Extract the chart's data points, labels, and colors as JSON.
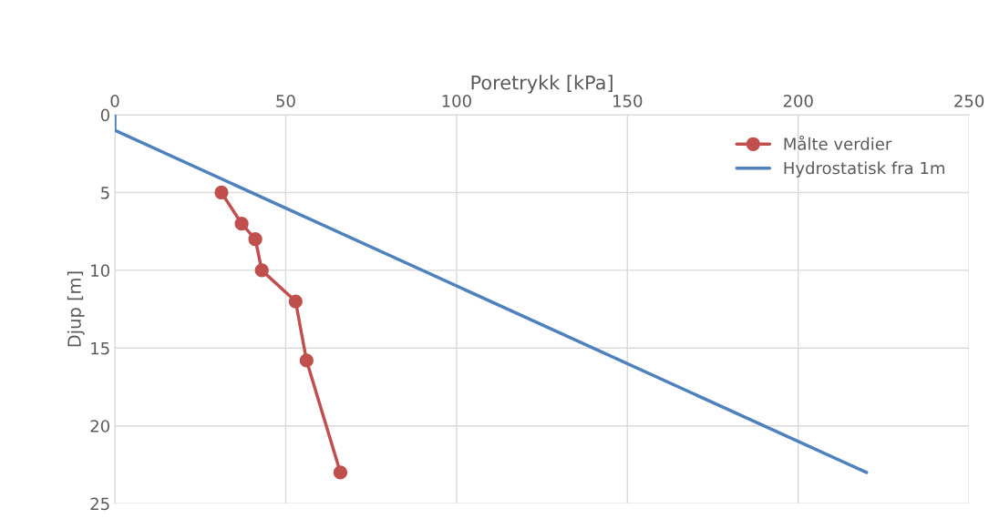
{
  "chart_data": {
    "type": "line",
    "xlabel": "Poretrykk [kPa]",
    "ylabel": "Djup [m]",
    "xlim": [
      0,
      250
    ],
    "xticks": [
      0,
      50,
      100,
      150,
      200,
      250
    ],
    "ylim": [
      25,
      0
    ],
    "yticks": [
      0,
      5,
      10,
      15,
      20,
      25
    ],
    "grid": true,
    "legend": "top right",
    "line_style": "solid",
    "series": [
      {
        "name": "Målte verdier",
        "color": "#c0504d",
        "marker": "circle",
        "x": [
          31.2,
          37.1,
          41.1,
          43.0,
          52.9,
          56.1,
          66.0
        ],
        "values": [
          5.0,
          7.0,
          8.0,
          10.0,
          12.0,
          15.8,
          23.0
        ]
      },
      {
        "name": "Hydrostatisk fra 1m",
        "color": "#4f81bd",
        "marker": "none",
        "x": [
          0,
          0,
          220
        ],
        "values": [
          0,
          1,
          23
        ]
      }
    ]
  }
}
